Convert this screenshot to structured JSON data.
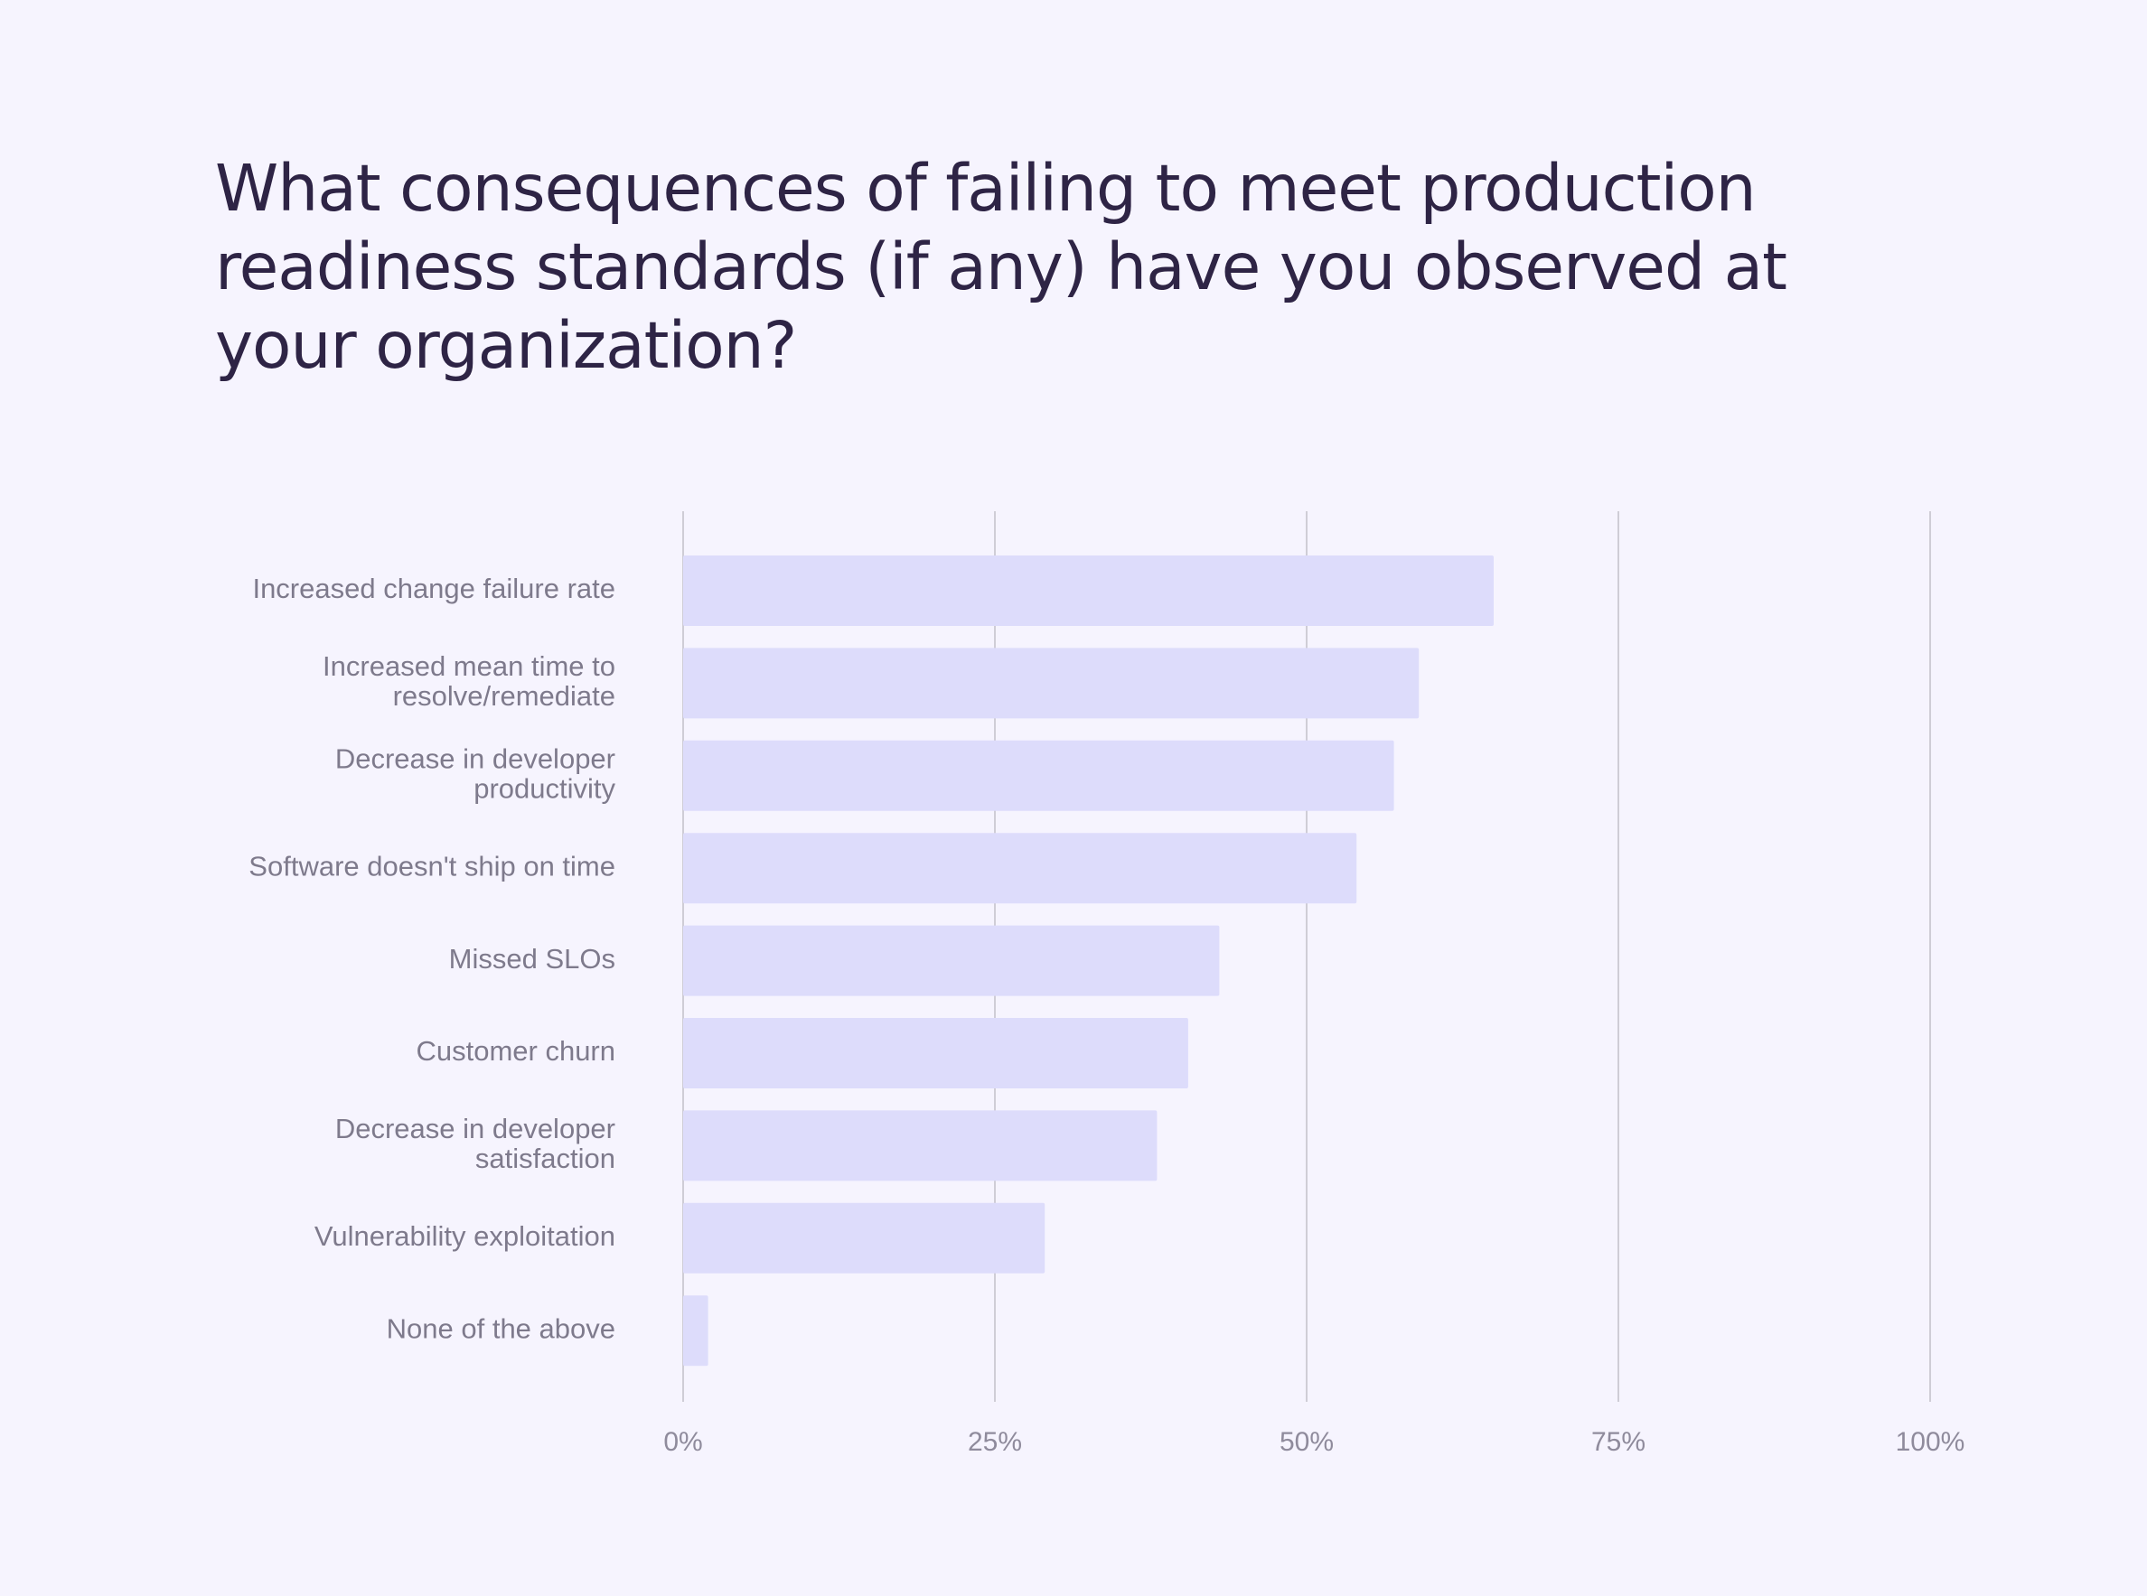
{
  "chart_data": {
    "type": "bar",
    "orientation": "horizontal",
    "title": "What consequences of failing to meet production readiness standards (if any) have you observed at your organization?",
    "categories": [
      [
        "Increased change failure rate"
      ],
      [
        "Increased mean time to",
        "resolve/remediate"
      ],
      [
        "Decrease in developer",
        "productivity"
      ],
      [
        "Software doesn't ship on time"
      ],
      [
        "Missed SLOs"
      ],
      [
        "Customer churn"
      ],
      [
        "Decrease in developer",
        "satisfaction"
      ],
      [
        "Vulnerability exploitation"
      ],
      [
        "None of the above"
      ]
    ],
    "values": [
      65,
      59,
      57,
      54,
      43,
      40.5,
      38,
      29,
      2
    ],
    "xlim": [
      0,
      100
    ],
    "ticks": [
      0,
      25,
      50,
      75,
      100
    ],
    "tick_labels": [
      "0%",
      "25%",
      "50%",
      "75%",
      "100%"
    ],
    "bar_color": "#dddcfb",
    "grid_color": "#cfcdd6",
    "grid": true
  }
}
